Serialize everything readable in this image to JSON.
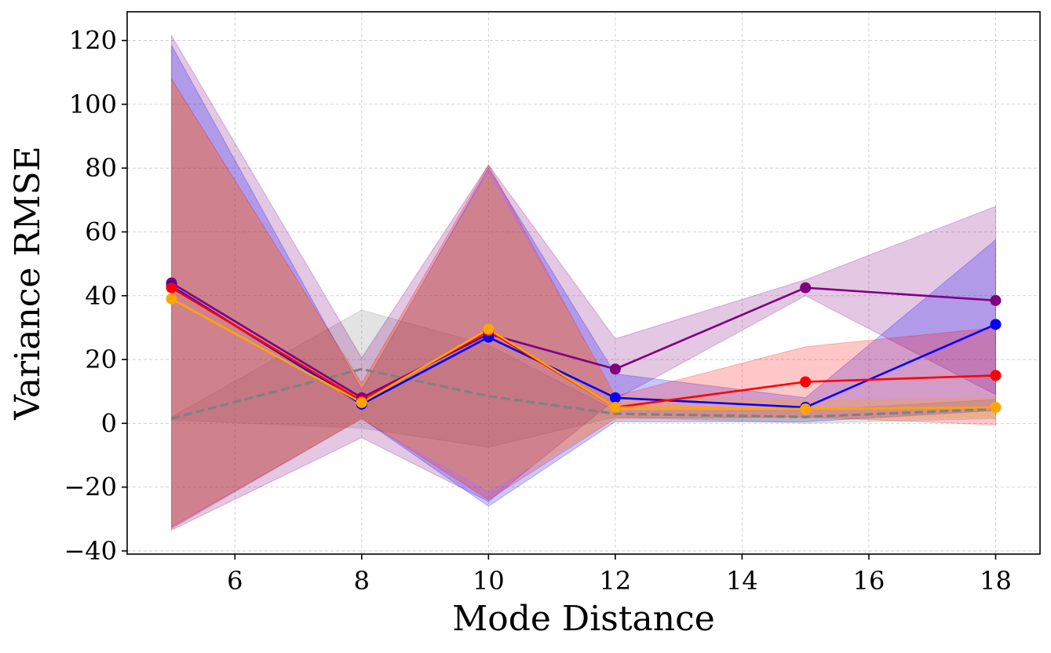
{
  "chart_data": {
    "type": "line",
    "title": "",
    "xlabel": "Mode Distance",
    "ylabel": "Variance RMSE",
    "x": [
      5,
      8,
      10,
      12,
      15,
      18
    ],
    "xlim": [
      4.3,
      18.7
    ],
    "ylim": [
      -41,
      129
    ],
    "xticks": [
      6,
      8,
      10,
      12,
      14,
      16,
      18
    ],
    "yticks": [
      -40,
      -20,
      0,
      20,
      40,
      60,
      80,
      100,
      120
    ],
    "xtick_labels": [
      "6",
      "8",
      "10",
      "12",
      "14",
      "16",
      "18"
    ],
    "ytick_labels": [
      "−40",
      "−20",
      "0",
      "20",
      "40",
      "60",
      "80",
      "100",
      "120"
    ],
    "grid": true,
    "legend": "none",
    "series": [
      {
        "color": "#808080",
        "style": "dashed",
        "markers": false,
        "values": [
          1.5,
          17,
          8.5,
          3,
          2,
          4.5
        ],
        "band_lower": [
          1,
          -1.5,
          -7.5,
          2,
          0,
          1.5
        ],
        "band_upper": [
          2,
          35.5,
          24.5,
          4,
          4,
          7.5
        ]
      },
      {
        "color": "#800080",
        "style": "solid",
        "markers": true,
        "values": [
          44,
          8,
          28,
          17,
          42.5,
          38.5
        ],
        "band_lower": [
          -33.5,
          -4.5,
          -24.5,
          7.5,
          40,
          9
        ],
        "band_upper": [
          121.5,
          20.5,
          81,
          26.5,
          45,
          68
        ]
      },
      {
        "color": "#0000ff",
        "style": "solid",
        "markers": true,
        "values": [
          43,
          6,
          27,
          8,
          5,
          31
        ],
        "band_lower": [
          -32.5,
          1.5,
          -26,
          0.5,
          0.5,
          4
        ],
        "band_upper": [
          118.5,
          10.5,
          80,
          15.5,
          8,
          57.5
        ]
      },
      {
        "color": "#ff0000",
        "style": "solid",
        "markers": true,
        "values": [
          42.5,
          7,
          29,
          5,
          13,
          15
        ],
        "band_lower": [
          -33,
          1.5,
          -24,
          1.5,
          2,
          -0.5
        ],
        "band_upper": [
          108,
          12.5,
          81,
          8.5,
          24,
          30
        ]
      },
      {
        "color": "#ffa500",
        "style": "solid",
        "markers": true,
        "values": [
          39,
          6.5,
          29.5,
          5,
          4.5,
          5
        ],
        "band_lower": [
          -32,
          1.5,
          -21,
          1.5,
          1.5,
          2
        ],
        "band_upper": [
          107,
          12,
          78,
          8.5,
          7,
          8
        ]
      }
    ]
  }
}
